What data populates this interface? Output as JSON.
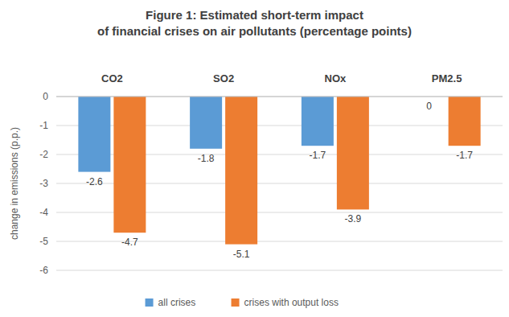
{
  "chart_data": {
    "type": "bar",
    "title": "Figure 1: Estimated short-term impact of financial crises on air pollutants (percentage points)",
    "y_label": "change in emissions (p.p.)",
    "categories": [
      "CO2",
      "SO2",
      "NOx",
      "PM2.5"
    ],
    "series": [
      {
        "name": "all crises",
        "color": "#5b9bd5",
        "values": [
          -2.6,
          -1.8,
          -1.7,
          0
        ]
      },
      {
        "name": "crises with output loss",
        "color": "#ed7d31",
        "values": [
          -4.7,
          -5.1,
          -3.9,
          -1.7
        ]
      }
    ],
    "ylim": [
      -6,
      0
    ],
    "yticks": [
      0,
      -1,
      -2,
      -3,
      -4,
      -5,
      -6
    ],
    "grid": true,
    "legend": "bottom",
    "data_labels": true
  }
}
